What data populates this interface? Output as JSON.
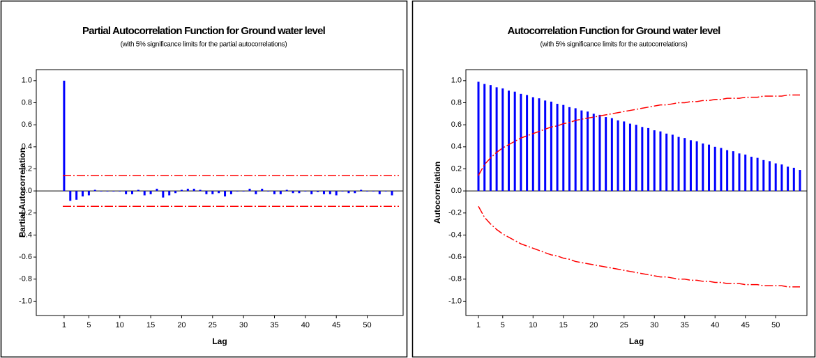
{
  "chart_data": [
    {
      "type": "bar",
      "title": "Partial Autocorrelation Function for Ground water level",
      "subtitle": "(with 5% significance limits for the partial autocorrelations)",
      "x_label": "Lag",
      "y_label": "Partial Autocorrelation",
      "x": [
        1,
        2,
        3,
        4,
        5,
        6,
        7,
        8,
        9,
        10,
        11,
        12,
        13,
        14,
        15,
        16,
        17,
        18,
        19,
        20,
        21,
        22,
        23,
        24,
        25,
        26,
        27,
        28,
        29,
        30,
        31,
        32,
        33,
        34,
        35,
        36,
        37,
        38,
        39,
        40,
        41,
        42,
        43,
        44,
        45,
        46,
        47,
        48,
        49,
        50,
        51,
        52,
        53,
        54
      ],
      "values": [
        1.0,
        -0.09,
        -0.08,
        -0.05,
        -0.04,
        0.01,
        0.0,
        0.0,
        0.0,
        0.0,
        -0.03,
        -0.03,
        0.01,
        -0.04,
        -0.03,
        0.02,
        -0.06,
        -0.04,
        -0.02,
        0.01,
        0.02,
        0.02,
        0.01,
        -0.03,
        -0.03,
        -0.02,
        -0.05,
        -0.03,
        0.0,
        0.0,
        0.02,
        -0.03,
        0.02,
        0.0,
        -0.03,
        -0.03,
        0.01,
        -0.02,
        -0.02,
        0.0,
        -0.03,
        -0.01,
        -0.03,
        -0.03,
        -0.04,
        0.0,
        -0.02,
        -0.02,
        0.01,
        0.0,
        0.0,
        -0.03,
        0.0,
        -0.04
      ],
      "color": "#0000ff",
      "significance_limits": [
        -0.14,
        0.14
      ],
      "limit_color": "#ff0000",
      "xlim": [
        -3.5,
        55.8
      ],
      "ylim": [
        -1.13,
        1.1
      ],
      "xticks": [
        1,
        5,
        10,
        15,
        20,
        25,
        30,
        35,
        40,
        45,
        50
      ],
      "yticks": [
        {
          "value": 1.0,
          "label": "1.0"
        },
        {
          "value": 0.8,
          "label": "0.8"
        },
        {
          "value": 0.6,
          "label": "0.6"
        },
        {
          "value": 0.4,
          "label": "0.4"
        },
        {
          "value": 0.2,
          "label": "0.2"
        },
        {
          "value": 0.0,
          "label": "0.0"
        },
        {
          "value": -0.2,
          "label": "-0.2"
        },
        {
          "value": -0.4,
          "label": "-0.4"
        },
        {
          "value": -0.6,
          "label": "-0.6"
        },
        {
          "value": -0.8,
          "label": "-0.8"
        },
        {
          "value": -1.0,
          "label": "-1.0"
        }
      ]
    },
    {
      "type": "bar",
      "title": "Autocorrelation Function for Ground water level",
      "subtitle": "(with 5% significance limits for the autocorrelations)",
      "x_label": "Lag",
      "y_label": "Autocorrelation",
      "x": [
        1,
        2,
        3,
        4,
        5,
        6,
        7,
        8,
        9,
        10,
        11,
        12,
        13,
        14,
        15,
        16,
        17,
        18,
        19,
        20,
        21,
        22,
        23,
        24,
        25,
        26,
        27,
        28,
        29,
        30,
        31,
        32,
        33,
        34,
        35,
        36,
        37,
        38,
        39,
        40,
        41,
        42,
        43,
        44,
        45,
        46,
        47,
        48,
        49,
        50,
        51,
        52,
        53,
        54
      ],
      "values": [
        0.99,
        0.97,
        0.96,
        0.94,
        0.93,
        0.91,
        0.9,
        0.88,
        0.87,
        0.85,
        0.84,
        0.82,
        0.81,
        0.79,
        0.78,
        0.76,
        0.75,
        0.73,
        0.72,
        0.7,
        0.69,
        0.67,
        0.66,
        0.64,
        0.63,
        0.61,
        0.6,
        0.58,
        0.57,
        0.55,
        0.54,
        0.52,
        0.51,
        0.49,
        0.48,
        0.46,
        0.45,
        0.43,
        0.42,
        0.4,
        0.39,
        0.37,
        0.36,
        0.34,
        0.33,
        0.31,
        0.3,
        0.28,
        0.27,
        0.25,
        0.24,
        0.22,
        0.21,
        0.19
      ],
      "color": "#0000ff",
      "upper_limits": [
        0.14,
        0.24,
        0.3,
        0.35,
        0.39,
        0.42,
        0.45,
        0.48,
        0.5,
        0.52,
        0.54,
        0.56,
        0.58,
        0.59,
        0.61,
        0.62,
        0.64,
        0.65,
        0.66,
        0.67,
        0.68,
        0.69,
        0.7,
        0.71,
        0.72,
        0.73,
        0.74,
        0.75,
        0.76,
        0.77,
        0.78,
        0.78,
        0.79,
        0.8,
        0.8,
        0.81,
        0.81,
        0.82,
        0.82,
        0.83,
        0.83,
        0.84,
        0.84,
        0.84,
        0.85,
        0.85,
        0.85,
        0.86,
        0.86,
        0.86,
        0.86,
        0.87,
        0.87,
        0.87
      ],
      "lower_limits": [
        -0.14,
        -0.24,
        -0.3,
        -0.35,
        -0.39,
        -0.42,
        -0.45,
        -0.48,
        -0.5,
        -0.52,
        -0.54,
        -0.56,
        -0.58,
        -0.59,
        -0.61,
        -0.62,
        -0.64,
        -0.65,
        -0.66,
        -0.67,
        -0.68,
        -0.69,
        -0.7,
        -0.71,
        -0.72,
        -0.73,
        -0.74,
        -0.75,
        -0.76,
        -0.77,
        -0.78,
        -0.78,
        -0.79,
        -0.8,
        -0.8,
        -0.81,
        -0.81,
        -0.82,
        -0.82,
        -0.83,
        -0.83,
        -0.84,
        -0.84,
        -0.84,
        -0.85,
        -0.85,
        -0.85,
        -0.86,
        -0.86,
        -0.86,
        -0.86,
        -0.87,
        -0.87,
        -0.87
      ],
      "limit_color": "#ff0000",
      "xlim": [
        -1.07,
        55.15
      ],
      "ylim": [
        -1.13,
        1.1
      ],
      "xticks": [
        1,
        5,
        10,
        15,
        20,
        25,
        30,
        35,
        40,
        45,
        50
      ],
      "yticks": [
        {
          "value": 1.0,
          "label": "1.0"
        },
        {
          "value": 0.8,
          "label": "0.8"
        },
        {
          "value": 0.6,
          "label": "0.6"
        },
        {
          "value": 0.4,
          "label": "0.4"
        },
        {
          "value": 0.2,
          "label": "0.2"
        },
        {
          "value": 0.0,
          "label": "0.0"
        },
        {
          "value": -0.2,
          "label": "-0.2"
        },
        {
          "value": -0.4,
          "label": "-0.4"
        },
        {
          "value": -0.6,
          "label": "-0.6"
        },
        {
          "value": -0.8,
          "label": "-0.8"
        },
        {
          "value": -1.0,
          "label": "-1.0"
        }
      ]
    }
  ]
}
